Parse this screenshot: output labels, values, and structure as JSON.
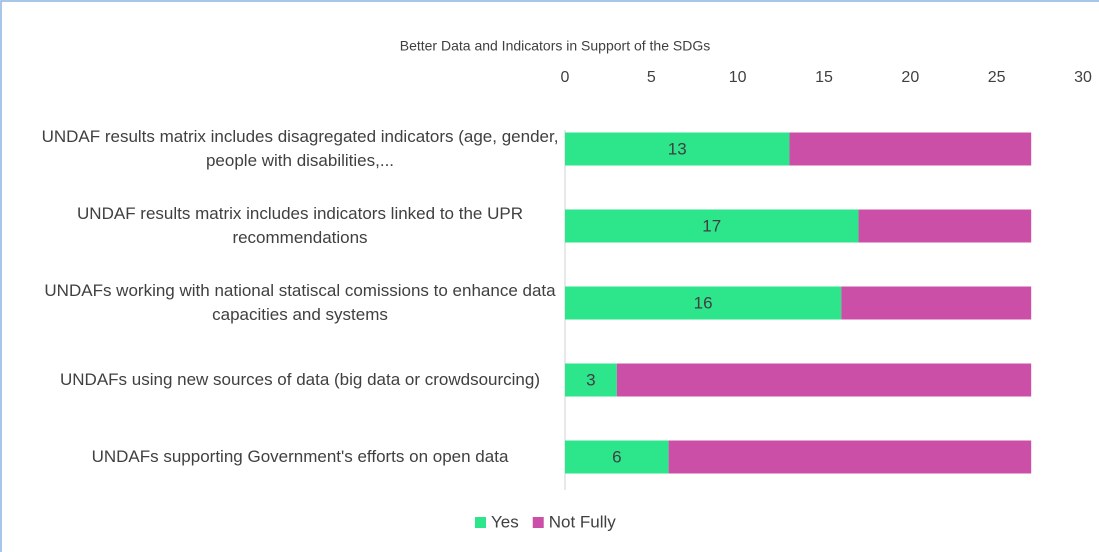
{
  "chart_data": {
    "type": "stacked_bar_horizontal",
    "title": "Better Data and Indicators in Support of the SDGs",
    "categories": [
      "UNDAF results matrix includes disagregated indicators (age, gender, people with disabilities,...",
      "UNDAF results matrix includes indicators linked to the UPR recommendations",
      "UNDAFs working with national statiscal comissions to enhance data capacities and systems",
      "UNDAFs using new sources of data (big data or crowdsourcing)",
      "UNDAFs supporting Government's efforts on open data"
    ],
    "series": [
      {
        "name": "Yes",
        "color": "#2de58b",
        "values": [
          13,
          17,
          16,
          3,
          6
        ]
      },
      {
        "name": "Not Fully",
        "color": "#cc4fa7",
        "values": [
          14,
          10,
          11,
          24,
          21
        ]
      }
    ],
    "xlim": [
      0,
      30
    ],
    "xticks": [
      0,
      5,
      10,
      15,
      20,
      25,
      30
    ],
    "legend": "bottom",
    "data_labels_series": [
      0
    ]
  }
}
